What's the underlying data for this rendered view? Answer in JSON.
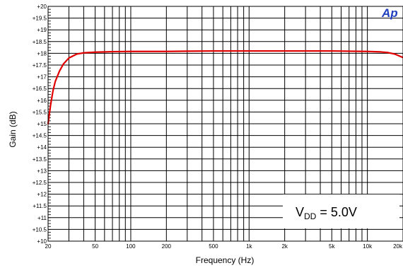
{
  "chart_data": {
    "type": "line",
    "xscale": "log",
    "xlabel": "Frequency (Hz)",
    "ylabel": "Gain (dB)",
    "xlim": [
      20,
      20000
    ],
    "ylim": [
      10,
      20
    ],
    "grid": true,
    "x_ticks": [
      20,
      50,
      100,
      200,
      500,
      1000,
      2000,
      5000,
      10000,
      20000
    ],
    "x_tick_labels": [
      "20",
      "50",
      "100",
      "200",
      "500",
      "1k",
      "2k",
      "5k",
      "10k",
      "20k"
    ],
    "y_ticks": [
      10,
      10.5,
      11,
      11.5,
      12,
      12.5,
      13,
      13.5,
      14,
      14.5,
      15,
      15.5,
      16,
      16.5,
      17,
      17.5,
      18,
      18.5,
      19,
      19.5,
      20
    ],
    "y_tick_labels": [
      "+10",
      "+10.5",
      "+11",
      "+11.5",
      "+12",
      "+12.5",
      "+13",
      "+13.5",
      "+14",
      "+14.5",
      "+15",
      "+15.5",
      "+16",
      "+16.5",
      "+17",
      "+17.5",
      "+18",
      "+18.5",
      "+19",
      "+19.5",
      "+20"
    ],
    "series": [
      {
        "color": "#e00000",
        "x": [
          20,
          21,
          22,
          23,
          25,
          27,
          30,
          35,
          40,
          50,
          70,
          100,
          200,
          300,
          500,
          1000,
          2000,
          5000,
          10000,
          13000,
          15000,
          17000,
          20000
        ],
        "y": [
          15.0,
          15.8,
          16.4,
          16.8,
          17.25,
          17.55,
          17.8,
          17.97,
          18.02,
          18.05,
          18.07,
          18.08,
          18.08,
          18.09,
          18.1,
          18.1,
          18.1,
          18.1,
          18.08,
          18.06,
          18.03,
          17.97,
          17.82
        ]
      }
    ],
    "annotation": {
      "main": "V",
      "sub": "DD",
      "rest": " = 5.0V"
    },
    "logo": "Ap"
  }
}
